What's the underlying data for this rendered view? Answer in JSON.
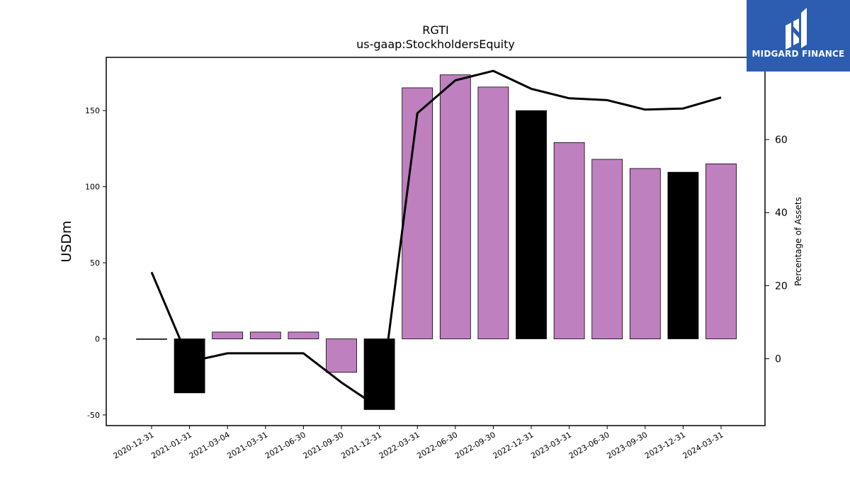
{
  "logo": {
    "text": "MIDGARD FINANCE",
    "color": "#2c5db0"
  },
  "chart_data": {
    "type": "bar",
    "title": "RGTI",
    "subtitle": "us-gaap:StockholdersEquity",
    "ylabel": "USDm",
    "y2label": "Percentage of Assets",
    "ylim": [
      -57,
      185
    ],
    "y2lim": [
      -18.3,
      82.5
    ],
    "yticks": [
      -50,
      0,
      50,
      100,
      150
    ],
    "y2ticks": [
      0,
      20,
      40,
      60
    ],
    "categories": [
      "2020-12-31",
      "2021-01-31",
      "2021-03-04",
      "2021-03-31",
      "2021-06-30",
      "2021-09-30",
      "2021-12-31",
      "2022-03-31",
      "2022-06-30",
      "2022-09-30",
      "2022-12-31",
      "2023-03-31",
      "2023-06-30",
      "2023-09-30",
      "2023-12-31",
      "2024-03-31"
    ],
    "series": [
      {
        "type": "bar",
        "values": [
          0,
          -35.5,
          4.5,
          4.5,
          4.5,
          -22,
          -46.5,
          165,
          173.5,
          165.5,
          150,
          129,
          118,
          112,
          109.5,
          115
        ],
        "colors": [
          "#000000",
          "#000000",
          "#bf80bf",
          "#bf80bf",
          "#bf80bf",
          "#bf80bf",
          "#000000",
          "#bf80bf",
          "#bf80bf",
          "#bf80bf",
          "#000000",
          "#bf80bf",
          "#bf80bf",
          "#bf80bf",
          "#000000",
          "#bf80bf"
        ]
      },
      {
        "type": "line",
        "axis": "right",
        "color": "#000000",
        "values": [
          23.7,
          -0.8,
          1.5,
          1.5,
          1.5,
          -6.5,
          -13.5,
          67.2,
          76.2,
          78.8,
          73.9,
          71.3,
          70.8,
          68.2,
          68.5,
          71.5
        ]
      }
    ]
  }
}
